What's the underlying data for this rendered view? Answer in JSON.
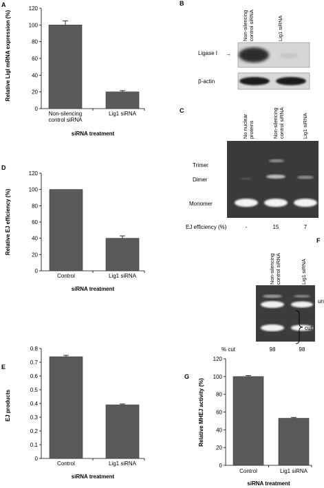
{
  "panels": {
    "A": {
      "label": "A",
      "chart_data": {
        "type": "bar",
        "ylabel": "Relative LigI mRNA expression (%)",
        "xlabel": "siRNA treatment",
        "categories": [
          [
            "Non-silencing",
            "control siRNA"
          ],
          [
            "Lig1 siRNA"
          ]
        ],
        "values": [
          100,
          20
        ],
        "errors": [
          5,
          1.5
        ],
        "ylim": [
          0,
          120
        ],
        "yticks": [
          "0",
          "20",
          "40",
          "60",
          "80",
          "100",
          "120"
        ]
      }
    },
    "B": {
      "label": "B",
      "columns": [
        [
          "Non-silencing",
          "control siRNA"
        ],
        [
          "Lig1 siRNA"
        ]
      ],
      "rows": [
        "Ligase I",
        "β-actin"
      ],
      "arrow": "→"
    },
    "C": {
      "label": "C",
      "columns": [
        [
          "No nuclear",
          "proteins"
        ],
        [
          "Non-silencing",
          "control siRNA"
        ],
        [
          "Lig1 siRNA"
        ]
      ],
      "bands": [
        "Trimer",
        "Dimer",
        "Monomer"
      ],
      "efficiency_label": "EJ efficiency (%)",
      "efficiency_values": [
        "-",
        "15",
        "7"
      ]
    },
    "D": {
      "label": "D",
      "chart_data": {
        "type": "bar",
        "ylabel": "Relative EJ efficiency (%)",
        "xlabel": "siRNA treatment",
        "categories": [
          [
            "Control"
          ],
          [
            "Lig1 siRNA"
          ]
        ],
        "values": [
          100,
          40
        ],
        "errors": [
          0,
          3
        ],
        "ylim": [
          0,
          120
        ],
        "yticks": [
          "0",
          "20",
          "40",
          "60",
          "80",
          "100",
          "120"
        ]
      }
    },
    "E": {
      "label": "E",
      "chart_data": {
        "type": "bar",
        "ylabel": "EJ products",
        "xlabel": "siRNA treatment",
        "categories": [
          [
            "Control"
          ],
          [
            "Lig1 siRNA"
          ]
        ],
        "values": [
          0.74,
          0.39
        ],
        "errors": [
          0.01,
          0.006
        ],
        "ylim": [
          0,
          0.8
        ],
        "yticks": [
          "0",
          "0.1",
          "0.2",
          "0.3",
          "0.4",
          "0.5",
          "0.6",
          "0.7",
          "0.8"
        ]
      }
    },
    "F": {
      "label": "F",
      "columns": [
        [
          "Non-silencing",
          "control siRNA"
        ],
        [
          "Lig1 siRNA"
        ]
      ],
      "band_labels": [
        "uncut",
        "cut"
      ],
      "cut_label": "% cut",
      "cut_values": [
        "98",
        "98"
      ]
    },
    "G": {
      "label": "G",
      "chart_data": {
        "type": "bar",
        "ylabel": "Relative MHEJ activity (%)",
        "xlabel": "siRNA treatment",
        "categories": [
          [
            "Control"
          ],
          [
            "Lig1 siRNA"
          ]
        ],
        "values": [
          100,
          53
        ],
        "errors": [
          1,
          1
        ],
        "ylim": [
          0,
          120
        ],
        "yticks": [
          "0",
          "20",
          "40",
          "60",
          "80",
          "100",
          "120"
        ]
      }
    }
  },
  "colors": {
    "bar": "#5a5a5a",
    "bar_stroke": "#333333",
    "gel_bg": "#3a3a3a",
    "band": "#f4f4f4"
  }
}
